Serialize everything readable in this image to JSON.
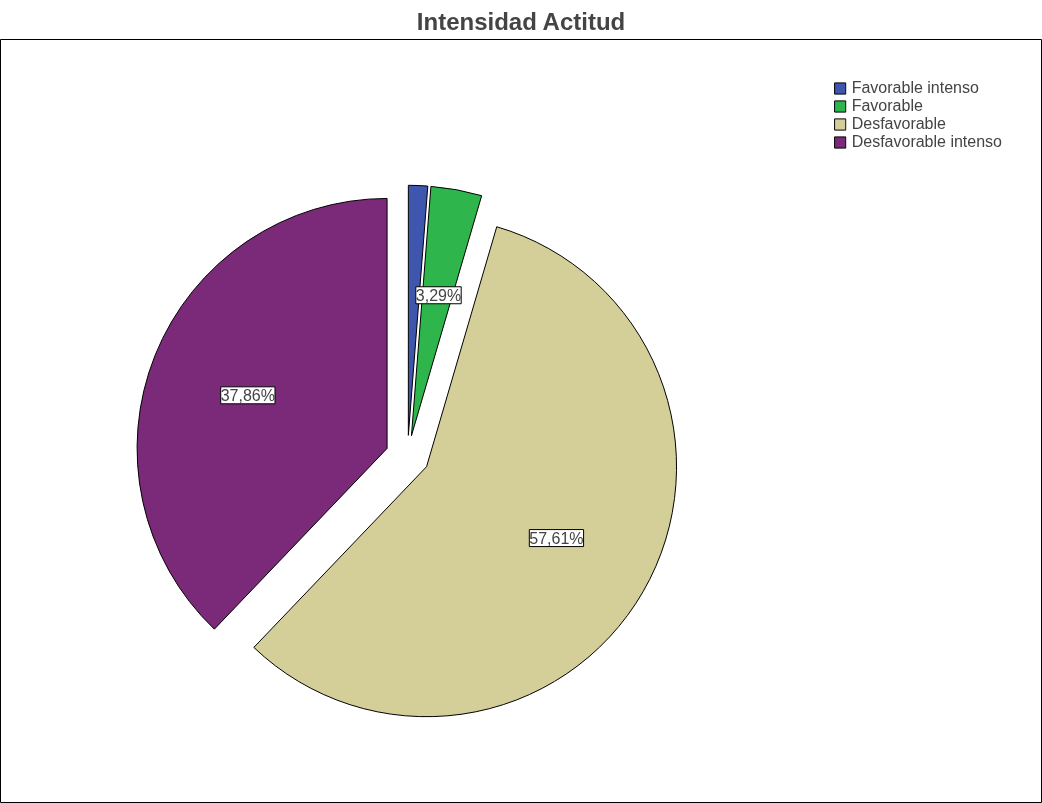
{
  "chart_data": {
    "type": "pie",
    "title": "Intensidad Actitud",
    "categories": [
      "Favorable intenso",
      "Favorable",
      "Desfavorable",
      "Desfavorable intenso"
    ],
    "values": [
      1.24,
      3.29,
      57.61,
      37.86
    ],
    "colors": [
      "#3e56ad",
      "#2eb64c",
      "#d4cf99",
      "#7b2a7a"
    ],
    "value_labels": [
      null,
      "3,29%",
      "57,61%",
      "37,86%"
    ],
    "legend": "top right"
  }
}
